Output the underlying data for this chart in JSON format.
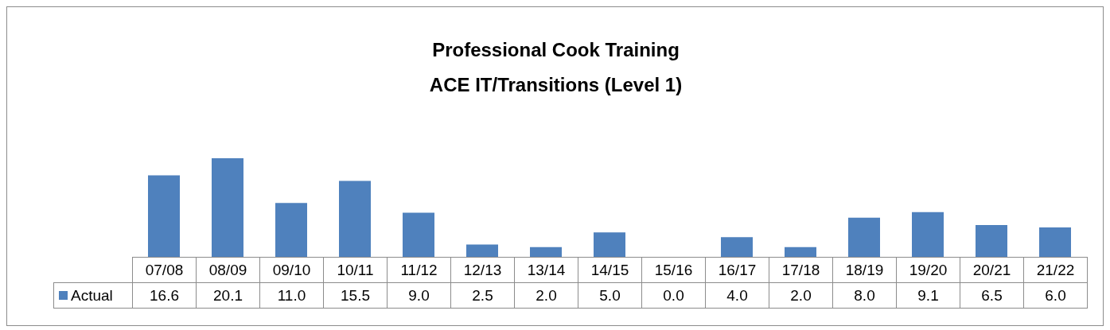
{
  "chart_data": {
    "type": "bar",
    "title": "Professional Cook Training",
    "subtitle": "ACE IT/Transitions (Level 1)",
    "categories": [
      "07/08",
      "08/09",
      "09/10",
      "10/11",
      "11/12",
      "12/13",
      "13/14",
      "14/15",
      "15/16",
      "16/17",
      "17/18",
      "18/19",
      "19/20",
      "20/21",
      "21/22"
    ],
    "series": [
      {
        "name": "Actual",
        "color": "#4f81bd",
        "values": [
          16.6,
          20.1,
          11.0,
          15.5,
          9.0,
          2.5,
          2.0,
          5.0,
          0.0,
          4.0,
          2.0,
          8.0,
          9.1,
          6.5,
          6.0
        ],
        "value_labels": [
          "16.6",
          "20.1",
          "11.0",
          "15.5",
          "9.0",
          "2.5",
          "2.0",
          "5.0",
          "0.0",
          "4.0",
          "2.0",
          "8.0",
          "9.1",
          "6.5",
          "6.0"
        ]
      }
    ],
    "legend": "bottom left"
  }
}
